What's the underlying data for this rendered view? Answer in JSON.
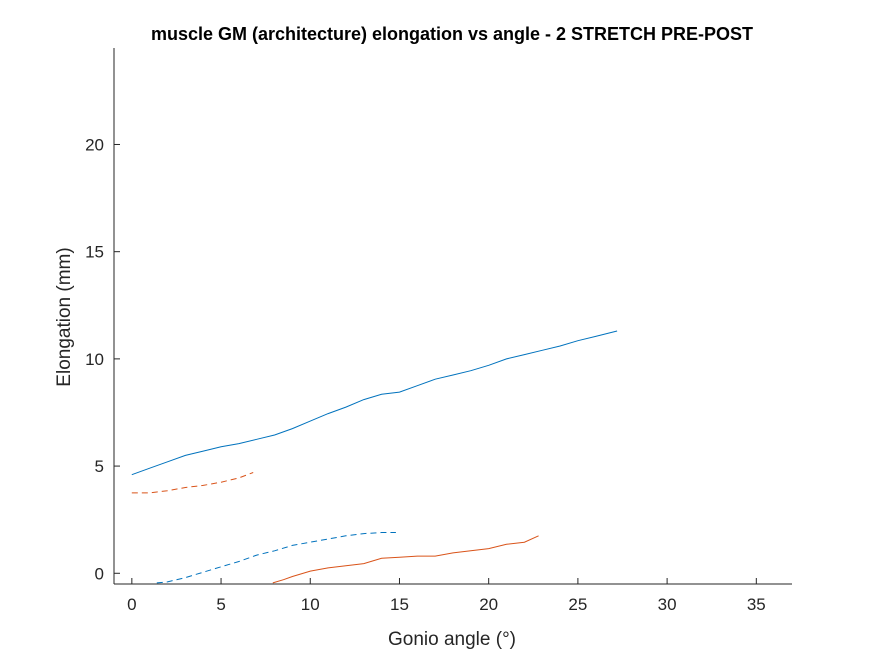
{
  "chart_data": {
    "type": "line",
    "title": "muscle GM (architecture) elongation vs angle - 2 STRETCH PRE-POST",
    "xlabel": "Gonio angle (°)",
    "ylabel": "Elongation (mm)",
    "xlim": [
      -1,
      37
    ],
    "ylim": [
      -0.5,
      24.5
    ],
    "xticks": [
      0,
      5,
      10,
      15,
      20,
      25,
      30,
      35
    ],
    "yticks": [
      0,
      5,
      10,
      15,
      20
    ],
    "grid": false,
    "legend": "none",
    "series": [
      {
        "color": "#0072BD",
        "style": "solid",
        "x": [
          0,
          1,
          2,
          3,
          4,
          5,
          6,
          7,
          8,
          9,
          10,
          11,
          12,
          13,
          14,
          15,
          16,
          17,
          18,
          19,
          20,
          21,
          22,
          23,
          24,
          25,
          26,
          27.2
        ],
        "y": [
          4.6,
          4.9,
          5.2,
          5.5,
          5.7,
          5.9,
          6.05,
          6.25,
          6.45,
          6.75,
          7.1,
          7.45,
          7.75,
          8.1,
          8.35,
          8.45,
          8.75,
          9.05,
          9.25,
          9.45,
          9.7,
          10.0,
          10.2,
          10.4,
          10.6,
          10.85,
          11.05,
          11.3
        ]
      },
      {
        "color": "#D95319",
        "style": "dashed",
        "x": [
          0,
          1,
          2,
          3,
          4,
          5,
          6,
          6.8
        ],
        "y": [
          3.75,
          3.75,
          3.85,
          4.0,
          4.1,
          4.25,
          4.45,
          4.7
        ]
      },
      {
        "color": "#0072BD",
        "style": "dashed",
        "x": [
          1.4,
          2,
          3,
          4,
          5,
          6,
          7,
          8,
          9,
          10,
          11,
          12,
          13,
          14,
          14.8
        ],
        "y": [
          -0.45,
          -0.4,
          -0.2,
          0.05,
          0.3,
          0.55,
          0.85,
          1.05,
          1.3,
          1.45,
          1.6,
          1.75,
          1.85,
          1.9,
          1.9
        ]
      },
      {
        "color": "#D95319",
        "style": "solid",
        "x": [
          7.9,
          8.5,
          9,
          10,
          11,
          12,
          13,
          14,
          15,
          16,
          17,
          18,
          19,
          20,
          21,
          22,
          22.8
        ],
        "y": [
          -0.45,
          -0.3,
          -0.15,
          0.1,
          0.25,
          0.35,
          0.45,
          0.7,
          0.75,
          0.8,
          0.8,
          0.95,
          1.05,
          1.15,
          1.35,
          1.45,
          1.75
        ]
      }
    ]
  }
}
